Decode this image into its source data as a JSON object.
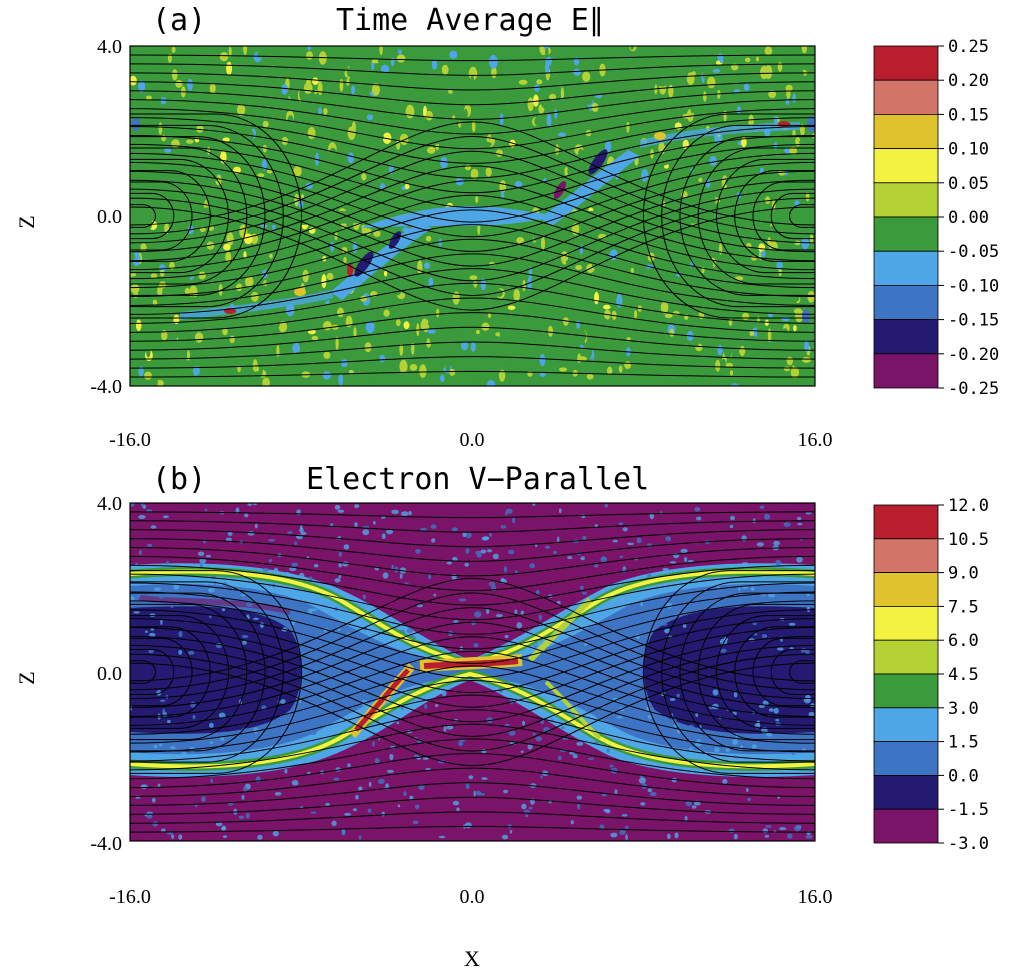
{
  "colors": {
    "magenta": "#7a1468",
    "dark_blue": "#241a72",
    "mid_blue": "#3d74c4",
    "light_blue": "#4ea6e6",
    "green": "#3a9a3c",
    "yellow_green": "#b5d235",
    "yellow": "#f3f241",
    "gold": "#e0c22c",
    "salmon": "#d27468",
    "red": "#b81e2e",
    "field_line": "#000000"
  },
  "chart_data": [
    {
      "type": "heatmap",
      "panel_label": "(a)",
      "title": "Time Average E∥",
      "xlabel": "",
      "ylabel": "Z",
      "xlim": [
        -16.0,
        16.0
      ],
      "ylim": [
        -4.0,
        4.0
      ],
      "x_ticks": [
        "-16.0",
        "0.0",
        "16.0"
      ],
      "y_ticks": [
        "4.0",
        "0.0",
        "-4.0"
      ],
      "background_level": "0.00",
      "colorbar": {
        "levels": [
          "0.25",
          "0.20",
          "0.15",
          "0.10",
          "0.05",
          "0.00",
          "-0.05",
          "-0.10",
          "-0.15",
          "-0.20",
          "-0.25"
        ],
        "colors": [
          "red",
          "salmon",
          "gold",
          "yellow",
          "yellow_green",
          "green",
          "light_blue",
          "mid_blue",
          "dark_blue",
          "magenta"
        ]
      }
    },
    {
      "type": "heatmap",
      "panel_label": "(b)",
      "title": "Electron V−Parallel",
      "xlabel": "X",
      "ylabel": "Z",
      "xlim": [
        -16.0,
        16.0
      ],
      "ylim": [
        -4.0,
        4.0
      ],
      "x_ticks": [
        "-16.0",
        "0.0",
        "16.0"
      ],
      "y_ticks": [
        "4.0",
        "0.0",
        "-4.0"
      ],
      "background_level": "-1.5",
      "colorbar": {
        "levels": [
          "12.0",
          "10.5",
          "9.0",
          "7.5",
          "6.0",
          "4.5",
          "3.0",
          "1.5",
          "0.0",
          "-1.5",
          "-3.0"
        ],
        "colors": [
          "red",
          "salmon",
          "gold",
          "yellow",
          "yellow_green",
          "green",
          "light_blue",
          "mid_blue",
          "dark_blue",
          "magenta"
        ]
      }
    }
  ]
}
